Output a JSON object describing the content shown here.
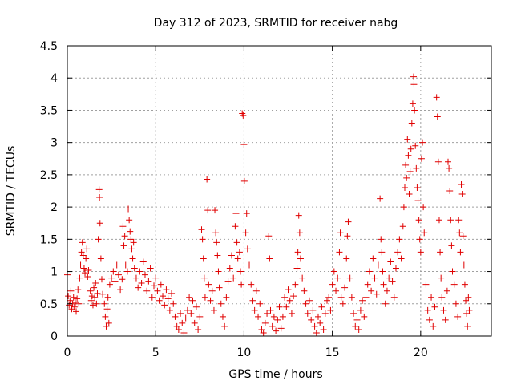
{
  "chart_data": {
    "type": "scatter",
    "title": "Day 312 of 2023, SRMTID for receiver nabg",
    "xlabel": "GPS time / hours",
    "ylabel": "SRMTID / TECUs",
    "xlim": [
      0,
      24
    ],
    "ylim": [
      0,
      4.5
    ],
    "x_ticks": [
      0,
      5,
      10,
      15,
      20
    ],
    "x_tick_labels": [
      "0",
      "5",
      "10",
      "15",
      "20"
    ],
    "y_ticks": [
      0,
      0.5,
      1,
      1.5,
      2,
      2.5,
      3,
      3.5,
      4,
      4.5
    ],
    "y_tick_labels": [
      "0",
      "0.5",
      "1",
      "1.5",
      "2",
      "2.5",
      "3",
      "3.5",
      "4",
      "4.5"
    ],
    "grid": true,
    "marker": "+",
    "color": "#e00000",
    "series": [
      {
        "name": "SRMTID",
        "points": [
          [
            0.0,
            0.95
          ],
          [
            0.05,
            0.62
          ],
          [
            0.1,
            0.48
          ],
          [
            0.15,
            0.55
          ],
          [
            0.2,
            0.7
          ],
          [
            0.25,
            0.42
          ],
          [
            0.3,
            0.5
          ],
          [
            0.35,
            0.6
          ],
          [
            0.4,
            0.45
          ],
          [
            0.45,
            0.52
          ],
          [
            0.5,
            0.38
          ],
          [
            0.55,
            0.58
          ],
          [
            0.6,
            0.72
          ],
          [
            0.65,
            0.5
          ],
          [
            0.7,
            0.9
          ],
          [
            0.75,
            1.1
          ],
          [
            0.8,
            1.3
          ],
          [
            0.85,
            1.45
          ],
          [
            0.9,
            1.25
          ],
          [
            0.95,
            1.05
          ],
          [
            1.0,
            0.98
          ],
          [
            1.05,
            1.2
          ],
          [
            1.1,
            1.35
          ],
          [
            1.15,
            0.92
          ],
          [
            1.2,
            1.02
          ],
          [
            1.3,
            0.7
          ],
          [
            1.35,
            0.55
          ],
          [
            1.4,
            0.62
          ],
          [
            1.45,
            0.48
          ],
          [
            1.5,
            0.75
          ],
          [
            1.55,
            0.6
          ],
          [
            1.6,
            0.82
          ],
          [
            1.65,
            0.5
          ],
          [
            1.7,
            0.66
          ],
          [
            1.75,
            1.5
          ],
          [
            1.8,
            2.27
          ],
          [
            1.82,
            2.15
          ],
          [
            1.85,
            1.75
          ],
          [
            1.9,
            1.2
          ],
          [
            1.95,
            0.88
          ],
          [
            2.0,
            0.65
          ],
          [
            2.1,
            0.5
          ],
          [
            2.15,
            0.3
          ],
          [
            2.2,
            0.15
          ],
          [
            2.25,
            0.42
          ],
          [
            2.3,
            0.6
          ],
          [
            2.35,
            0.2
          ],
          [
            2.4,
            0.8
          ],
          [
            2.5,
            0.9
          ],
          [
            2.6,
            1.0
          ],
          [
            2.7,
            0.85
          ],
          [
            2.8,
            1.1
          ],
          [
            2.9,
            0.95
          ],
          [
            3.0,
            0.72
          ],
          [
            3.1,
            0.88
          ],
          [
            3.15,
            1.7
          ],
          [
            3.2,
            1.4
          ],
          [
            3.25,
            1.55
          ],
          [
            3.3,
            1.1
          ],
          [
            3.4,
            1.0
          ],
          [
            3.45,
            1.97
          ],
          [
            3.5,
            1.8
          ],
          [
            3.55,
            1.62
          ],
          [
            3.6,
            1.5
          ],
          [
            3.65,
            1.35
          ],
          [
            3.7,
            1.2
          ],
          [
            3.75,
            1.45
          ],
          [
            3.8,
            1.05
          ],
          [
            3.9,
            0.9
          ],
          [
            4.0,
            0.75
          ],
          [
            4.1,
            1.0
          ],
          [
            4.2,
            0.82
          ],
          [
            4.3,
            1.15
          ],
          [
            4.4,
            0.95
          ],
          [
            4.5,
            0.7
          ],
          [
            4.6,
            0.85
          ],
          [
            4.7,
            1.05
          ],
          [
            4.8,
            0.6
          ],
          [
            4.9,
            0.78
          ],
          [
            5.0,
            0.9
          ],
          [
            5.1,
            0.7
          ],
          [
            5.2,
            0.55
          ],
          [
            5.3,
            0.8
          ],
          [
            5.4,
            0.62
          ],
          [
            5.5,
            0.48
          ],
          [
            5.6,
            0.72
          ],
          [
            5.7,
            0.58
          ],
          [
            5.8,
            0.4
          ],
          [
            5.9,
            0.66
          ],
          [
            6.0,
            0.5
          ],
          [
            6.1,
            0.3
          ],
          [
            6.2,
            0.15
          ],
          [
            6.3,
            0.1
          ],
          [
            6.4,
            0.35
          ],
          [
            6.5,
            0.2
          ],
          [
            6.6,
            0.05
          ],
          [
            6.7,
            0.28
          ],
          [
            6.8,
            0.4
          ],
          [
            6.9,
            0.6
          ],
          [
            7.0,
            0.35
          ],
          [
            7.1,
            0.55
          ],
          [
            7.2,
            0.2
          ],
          [
            7.3,
            0.45
          ],
          [
            7.4,
            0.1
          ],
          [
            7.5,
            0.3
          ],
          [
            7.6,
            1.65
          ],
          [
            7.65,
            1.5
          ],
          [
            7.7,
            1.2
          ],
          [
            7.75,
            0.9
          ],
          [
            7.8,
            0.6
          ],
          [
            7.9,
            2.43
          ],
          [
            7.95,
            1.95
          ],
          [
            8.0,
            0.8
          ],
          [
            8.1,
            0.55
          ],
          [
            8.2,
            0.7
          ],
          [
            8.3,
            0.4
          ],
          [
            8.35,
            1.95
          ],
          [
            8.4,
            1.6
          ],
          [
            8.45,
            1.45
          ],
          [
            8.5,
            1.25
          ],
          [
            8.55,
            1.0
          ],
          [
            8.6,
            0.75
          ],
          [
            8.7,
            0.5
          ],
          [
            8.8,
            0.3
          ],
          [
            8.9,
            0.15
          ],
          [
            9.0,
            0.6
          ],
          [
            9.1,
            0.85
          ],
          [
            9.2,
            1.05
          ],
          [
            9.3,
            1.25
          ],
          [
            9.4,
            0.9
          ],
          [
            9.5,
            1.7
          ],
          [
            9.55,
            1.9
          ],
          [
            9.6,
            1.45
          ],
          [
            9.65,
            1.2
          ],
          [
            9.75,
            1.3
          ],
          [
            9.8,
            1.0
          ],
          [
            9.85,
            0.8
          ],
          [
            9.9,
            3.45
          ],
          [
            9.95,
            3.42
          ],
          [
            10.0,
            2.97
          ],
          [
            10.02,
            2.4
          ],
          [
            10.1,
            1.6
          ],
          [
            10.15,
            1.9
          ],
          [
            10.2,
            1.35
          ],
          [
            10.3,
            1.1
          ],
          [
            10.4,
            0.8
          ],
          [
            10.5,
            0.55
          ],
          [
            10.6,
            0.4
          ],
          [
            10.7,
            0.7
          ],
          [
            10.8,
            0.3
          ],
          [
            10.9,
            0.5
          ],
          [
            11.0,
            0.1
          ],
          [
            11.1,
            0.05
          ],
          [
            11.2,
            0.2
          ],
          [
            11.3,
            0.35
          ],
          [
            11.4,
            1.55
          ],
          [
            11.45,
            1.2
          ],
          [
            11.5,
            0.4
          ],
          [
            11.6,
            0.15
          ],
          [
            11.7,
            0.3
          ],
          [
            11.8,
            0.08
          ],
          [
            11.9,
            0.25
          ],
          [
            12.0,
            0.45
          ],
          [
            12.1,
            0.12
          ],
          [
            12.2,
            0.3
          ],
          [
            12.3,
            0.6
          ],
          [
            12.4,
            0.45
          ],
          [
            12.5,
            0.72
          ],
          [
            12.6,
            0.55
          ],
          [
            12.7,
            0.35
          ],
          [
            12.8,
            0.62
          ],
          [
            12.9,
            0.8
          ],
          [
            13.0,
            1.05
          ],
          [
            13.05,
            1.3
          ],
          [
            13.1,
            1.87
          ],
          [
            13.15,
            1.6
          ],
          [
            13.2,
            1.2
          ],
          [
            13.3,
            0.9
          ],
          [
            13.4,
            0.7
          ],
          [
            13.5,
            0.5
          ],
          [
            13.6,
            0.35
          ],
          [
            13.7,
            0.55
          ],
          [
            13.8,
            0.25
          ],
          [
            13.9,
            0.4
          ],
          [
            14.0,
            0.15
          ],
          [
            14.1,
            0.05
          ],
          [
            14.2,
            0.3
          ],
          [
            14.3,
            0.2
          ],
          [
            14.4,
            0.45
          ],
          [
            14.5,
            0.1
          ],
          [
            14.6,
            0.35
          ],
          [
            14.7,
            0.55
          ],
          [
            14.8,
            0.6
          ],
          [
            14.9,
            0.4
          ],
          [
            15.0,
            0.8
          ],
          [
            15.1,
            1.0
          ],
          [
            15.2,
            0.7
          ],
          [
            15.3,
            0.9
          ],
          [
            15.4,
            1.3
          ],
          [
            15.45,
            1.6
          ],
          [
            15.5,
            0.6
          ],
          [
            15.6,
            0.5
          ],
          [
            15.7,
            0.75
          ],
          [
            15.8,
            1.2
          ],
          [
            15.85,
            1.55
          ],
          [
            15.9,
            1.77
          ],
          [
            16.0,
            0.9
          ],
          [
            16.1,
            0.6
          ],
          [
            16.2,
            0.35
          ],
          [
            16.3,
            0.15
          ],
          [
            16.4,
            0.25
          ],
          [
            16.5,
            0.1
          ],
          [
            16.6,
            0.4
          ],
          [
            16.7,
            0.55
          ],
          [
            16.8,
            0.3
          ],
          [
            16.9,
            0.6
          ],
          [
            17.0,
            0.8
          ],
          [
            17.1,
            1.0
          ],
          [
            17.2,
            0.7
          ],
          [
            17.3,
            1.2
          ],
          [
            17.4,
            0.9
          ],
          [
            17.5,
            0.65
          ],
          [
            17.6,
            1.1
          ],
          [
            17.7,
            2.13
          ],
          [
            17.75,
            1.5
          ],
          [
            17.8,
            1.3
          ],
          [
            17.85,
            1.0
          ],
          [
            17.9,
            0.8
          ],
          [
            18.0,
            0.5
          ],
          [
            18.1,
            0.7
          ],
          [
            18.2,
            0.9
          ],
          [
            18.3,
            1.15
          ],
          [
            18.4,
            0.85
          ],
          [
            18.5,
            0.6
          ],
          [
            18.6,
            1.05
          ],
          [
            18.7,
            1.3
          ],
          [
            18.8,
            1.5
          ],
          [
            18.9,
            1.2
          ],
          [
            19.0,
            1.7
          ],
          [
            19.05,
            2.0
          ],
          [
            19.1,
            2.3
          ],
          [
            19.15,
            2.65
          ],
          [
            19.2,
            2.45
          ],
          [
            19.25,
            3.05
          ],
          [
            19.3,
            2.8
          ],
          [
            19.35,
            2.2
          ],
          [
            19.4,
            2.55
          ],
          [
            19.45,
            2.9
          ],
          [
            19.5,
            3.3
          ],
          [
            19.55,
            3.6
          ],
          [
            19.6,
            4.02
          ],
          [
            19.62,
            3.9
          ],
          [
            19.65,
            3.5
          ],
          [
            19.7,
            2.95
          ],
          [
            19.75,
            2.6
          ],
          [
            19.8,
            2.3
          ],
          [
            19.85,
            2.1
          ],
          [
            19.9,
            1.8
          ],
          [
            19.95,
            1.5
          ],
          [
            20.0,
            1.3
          ],
          [
            20.05,
            2.75
          ],
          [
            20.1,
            3.0
          ],
          [
            20.15,
            2.0
          ],
          [
            20.2,
            1.6
          ],
          [
            20.3,
            0.8
          ],
          [
            20.4,
            0.4
          ],
          [
            20.5,
            0.25
          ],
          [
            20.6,
            0.6
          ],
          [
            20.7,
            0.15
          ],
          [
            20.8,
            0.45
          ],
          [
            20.9,
            3.7
          ],
          [
            20.95,
            3.4
          ],
          [
            21.0,
            2.7
          ],
          [
            21.05,
            1.8
          ],
          [
            21.1,
            1.3
          ],
          [
            21.15,
            0.9
          ],
          [
            21.2,
            0.6
          ],
          [
            21.3,
            0.4
          ],
          [
            21.4,
            0.25
          ],
          [
            21.5,
            0.7
          ],
          [
            21.55,
            2.7
          ],
          [
            21.6,
            2.6
          ],
          [
            21.65,
            2.25
          ],
          [
            21.7,
            1.8
          ],
          [
            21.75,
            1.4
          ],
          [
            21.8,
            1.0
          ],
          [
            21.9,
            0.8
          ],
          [
            22.0,
            0.5
          ],
          [
            22.1,
            0.3
          ],
          [
            22.15,
            1.8
          ],
          [
            22.2,
            1.6
          ],
          [
            22.25,
            1.3
          ],
          [
            22.3,
            2.35
          ],
          [
            22.35,
            2.2
          ],
          [
            22.4,
            1.55
          ],
          [
            22.45,
            1.1
          ],
          [
            22.5,
            0.8
          ],
          [
            22.55,
            0.55
          ],
          [
            22.6,
            0.35
          ],
          [
            22.65,
            0.15
          ],
          [
            22.7,
            0.6
          ],
          [
            22.75,
            0.4
          ]
        ]
      }
    ]
  }
}
